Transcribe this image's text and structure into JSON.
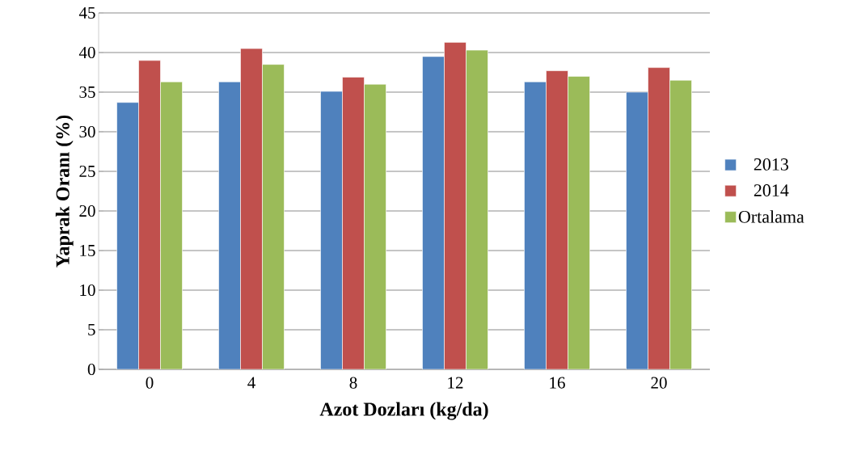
{
  "chart_data": {
    "type": "bar",
    "xlabel": "Azot Dozları (kg/da)",
    "ylabel": "Yaprak Oranı (%)",
    "categories": [
      "0",
      "4",
      "8",
      "12",
      "16",
      "20"
    ],
    "series": [
      {
        "name": "2013",
        "color": "#4f81bd",
        "values": [
          33.7,
          36.3,
          35.1,
          39.5,
          36.3,
          35.0
        ]
      },
      {
        "name": "2014",
        "color": "#c0504d",
        "values": [
          39.0,
          40.5,
          36.9,
          41.3,
          37.7,
          38.1
        ]
      },
      {
        "name": "Ortalama",
        "color": "#9bbb59",
        "values": [
          36.3,
          38.5,
          36.0,
          40.3,
          37.0,
          36.5
        ]
      }
    ],
    "ylim": [
      0,
      45
    ],
    "yticks": [
      0,
      5,
      10,
      15,
      20,
      25,
      30,
      35,
      40,
      45
    ],
    "grid": "y",
    "legend": "right"
  }
}
